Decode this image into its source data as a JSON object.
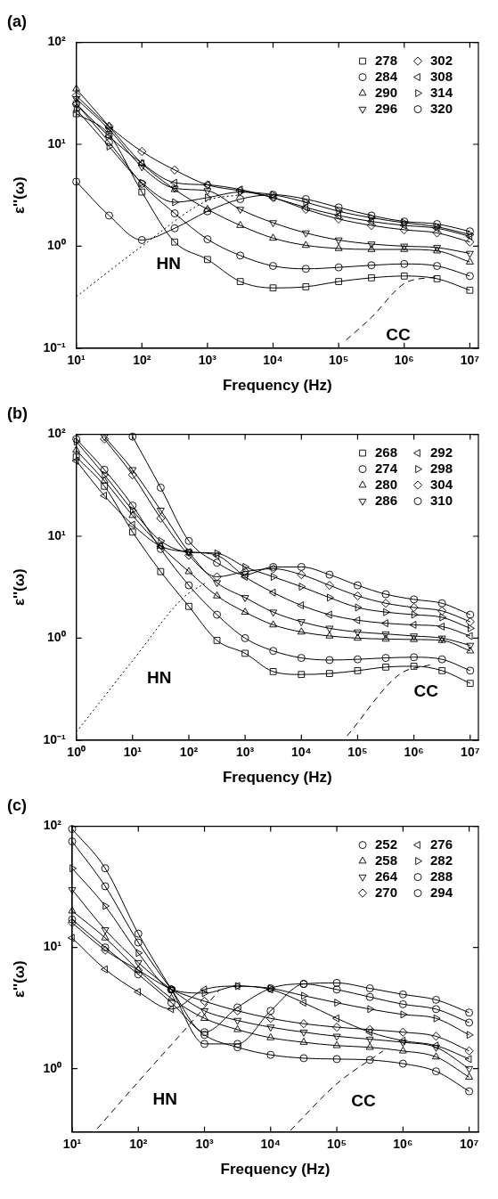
{
  "chart_data": [
    {
      "type": "line",
      "title": "(a)",
      "xlabel": "Frequency (Hz)",
      "ylabel": "ε''(ω)",
      "log": "xy",
      "grid": false,
      "legend": "top right",
      "xlim": [
        10,
        13500000
      ],
      "ylim": [
        0.1,
        100
      ],
      "xticks": [
        {
          "value": 10,
          "label": "10¹"
        },
        {
          "value": 100,
          "label": "10²"
        },
        {
          "value": 1000,
          "label": "10³"
        },
        {
          "value": 10000,
          "label": "10⁴"
        },
        {
          "value": 100000,
          "label": "10⁵"
        },
        {
          "value": 1000000,
          "label": "10⁶"
        },
        {
          "value": 10000000,
          "label": "10⁷"
        }
      ],
      "yticks": [
        {
          "value": 0.1,
          "label": "10⁻¹"
        },
        {
          "value": 1,
          "label": "10⁰"
        },
        {
          "value": 10,
          "label": "10¹"
        },
        {
          "value": 100,
          "label": "10²"
        }
      ],
      "x": [
        10,
        31.62,
        100,
        316.2,
        1000,
        3162,
        10000,
        31620,
        100000,
        316200,
        1000000,
        3162000,
        10000000
      ],
      "series": [
        {
          "name": "278",
          "color": "#000000",
          "marker": "square",
          "line_style": "solid",
          "values": [
            20,
            12.5,
            3.4,
            1.1,
            0.74,
            0.45,
            0.39,
            0.4,
            0.45,
            0.49,
            0.51,
            0.48,
            0.37
          ]
        },
        {
          "name": "284",
          "color": "#000000",
          "marker": "circle",
          "line_style": "solid",
          "values": [
            25,
            10.5,
            4.1,
            2.1,
            1.17,
            0.81,
            0.64,
            0.6,
            0.62,
            0.65,
            0.67,
            0.64,
            0.51
          ]
        },
        {
          "name": "290",
          "color": "#000000",
          "marker": "triangle",
          "line_style": "solid",
          "values": [
            35,
            15,
            6.5,
            3.6,
            2.3,
            1.6,
            1.2,
            1.02,
            0.95,
            0.93,
            0.93,
            0.9,
            0.7
          ]
        },
        {
          "name": "296",
          "color": "#000000",
          "marker": "triangle-down",
          "line_style": "solid",
          "values": [
            28,
            14,
            6,
            3.7,
            3.5,
            2.3,
            1.7,
            1.35,
            1.15,
            1.05,
            1,
            0.97,
            0.85
          ]
        },
        {
          "name": "302",
          "color": "#000000",
          "marker": "diamond",
          "line_style": "solid",
          "values": [
            30,
            15,
            8.5,
            5.6,
            4,
            3.5,
            3,
            2.3,
            1.85,
            1.6,
            1.45,
            1.35,
            1.1
          ]
        },
        {
          "name": "308",
          "color": "#000000",
          "marker": "triangle-left",
          "line_style": "solid",
          "values": [
            25,
            12,
            6.5,
            4.2,
            4,
            3.6,
            3,
            2.4,
            2,
            1.75,
            1.6,
            1.5,
            1.25
          ]
        },
        {
          "name": "314",
          "color": "#000000",
          "marker": "triangle-right",
          "line_style": "solid",
          "values": [
            22,
            9.5,
            4.2,
            2.7,
            3,
            3.4,
            3.2,
            2.7,
            2.2,
            1.9,
            1.7,
            1.55,
            1.3
          ]
        },
        {
          "name": "320",
          "color": "#000000",
          "marker": "circle",
          "line_style": "solid",
          "values": [
            4.3,
            2,
            1.15,
            1.5,
            2.2,
            2.9,
            3.2,
            2.9,
            2.4,
            2,
            1.75,
            1.65,
            1.4
          ]
        },
        {
          "color": "#000000",
          "marker": "none",
          "line_style": "dotted",
          "x": [
            10,
            100,
            1000,
            3162
          ],
          "values": [
            0.32,
            1,
            2.8,
            3.2
          ]
        },
        {
          "color": "#000000",
          "marker": "none",
          "line_style": "dashed",
          "x": [
            130000,
            316200,
            1000000,
            3000000
          ],
          "values": [
            0.12,
            0.2,
            0.43,
            0.5
          ]
        }
      ],
      "annotations": [
        "HN",
        "CC"
      ]
    },
    {
      "type": "line",
      "title": "(b)",
      "xlabel": "Frequency (Hz)",
      "ylabel": "ε''(ω)",
      "log": "xy",
      "grid": false,
      "legend": "top right",
      "xlim": [
        1,
        14000000
      ],
      "ylim": [
        0.1,
        100
      ],
      "xticks": [
        {
          "value": 1,
          "label": "10⁰"
        },
        {
          "value": 10,
          "label": "10¹"
        },
        {
          "value": 100,
          "label": "10²"
        },
        {
          "value": 1000,
          "label": "10³"
        },
        {
          "value": 10000,
          "label": "10⁴"
        },
        {
          "value": 100000,
          "label": "10⁵"
        },
        {
          "value": 1000000,
          "label": "10⁶"
        },
        {
          "value": 10000000,
          "label": "10⁷"
        }
      ],
      "yticks": [
        {
          "value": 0.1,
          "label": "10⁻¹"
        },
        {
          "value": 1,
          "label": "10⁰"
        },
        {
          "value": 10,
          "label": "10¹"
        },
        {
          "value": 100,
          "label": "10²"
        }
      ],
      "x": [
        1,
        3.162,
        10,
        31.62,
        100,
        316.2,
        1000,
        3162,
        10000,
        31620,
        100000,
        316200,
        1000000,
        3162000,
        10000000
      ],
      "series": [
        {
          "name": "268",
          "color": "#000000",
          "marker": "square",
          "line_style": "solid",
          "values": [
            60,
            31,
            11,
            4.5,
            2.05,
            0.95,
            0.71,
            0.47,
            0.44,
            0.45,
            0.48,
            0.52,
            0.53,
            0.48,
            0.36
          ]
        },
        {
          "name": "274",
          "color": "#000000",
          "marker": "circle",
          "line_style": "solid",
          "values": [
            90,
            45,
            20,
            7.5,
            3.3,
            1.7,
            1,
            0.75,
            0.64,
            0.61,
            0.62,
            0.64,
            0.65,
            0.62,
            0.48
          ]
        },
        {
          "name": "280",
          "color": "#000000",
          "marker": "triangle",
          "line_style": "solid",
          "values": [
            70,
            35,
            16,
            8,
            4.5,
            2.6,
            1.8,
            1.35,
            1.15,
            1.05,
            1,
            0.98,
            0.97,
            0.95,
            0.75
          ]
        },
        {
          "name": "286",
          "color": "#000000",
          "marker": "triangle-down",
          "line_style": "solid",
          "values": [
            null,
            95,
            45,
            18,
            7,
            3.5,
            2.5,
            1.8,
            1.45,
            1.25,
            1.15,
            1.1,
            1.05,
            1,
            0.85
          ]
        },
        {
          "name": "292",
          "color": "#000000",
          "marker": "triangle-left",
          "line_style": "solid",
          "values": [
            55,
            25,
            13,
            8,
            7,
            6.5,
            4,
            2.8,
            2.1,
            1.7,
            1.5,
            1.4,
            1.35,
            1.3,
            1.05
          ]
        },
        {
          "name": "298",
          "color": "#000000",
          "marker": "triangle-right",
          "line_style": "solid",
          "values": [
            85,
            40,
            18,
            9,
            7,
            6.8,
            5,
            4,
            3.2,
            2.5,
            2,
            1.8,
            1.7,
            1.6,
            1.25
          ]
        },
        {
          "name": "304",
          "color": "#000000",
          "marker": "diamond",
          "line_style": "solid",
          "values": [
            null,
            90,
            40,
            15,
            6.5,
            4,
            4.5,
            4.8,
            4.2,
            3.3,
            2.6,
            2.2,
            2,
            1.85,
            1.45
          ]
        },
        {
          "name": "310",
          "color": "#000000",
          "marker": "circle",
          "line_style": "solid",
          "values": [
            null,
            null,
            95,
            30,
            9,
            5.5,
            4.2,
            5,
            5,
            4.2,
            3.3,
            2.7,
            2.4,
            2.2,
            1.7
          ]
        },
        {
          "color": "#000000",
          "marker": "none",
          "line_style": "dotted",
          "x": [
            1,
            10,
            80,
            200
          ],
          "values": [
            0.12,
            0.6,
            2.5,
            3.5
          ]
        },
        {
          "color": "#000000",
          "marker": "none",
          "line_style": "dashed",
          "x": [
            65000,
            550000,
            2000000
          ],
          "values": [
            0.11,
            0.44,
            0.55
          ]
        }
      ],
      "annotations": [
        "HN",
        "CC"
      ]
    },
    {
      "type": "line",
      "title": "(c)",
      "xlabel": "Frequency (Hz)",
      "ylabel": "ε''(ω)",
      "log": "xy",
      "grid": false,
      "legend": "top right",
      "xlim": [
        10,
        13800000
      ],
      "ylim": [
        0.3,
        100
      ],
      "xticks": [
        {
          "value": 10,
          "label": "10¹"
        },
        {
          "value": 100,
          "label": "10²"
        },
        {
          "value": 1000,
          "label": "10³"
        },
        {
          "value": 10000,
          "label": "10⁴"
        },
        {
          "value": 100000,
          "label": "10⁵"
        },
        {
          "value": 1000000,
          "label": "10⁶"
        },
        {
          "value": 10000000,
          "label": "10⁷"
        }
      ],
      "yticks": [
        {
          "value": 1,
          "label": "10⁰"
        },
        {
          "value": 10,
          "label": "10¹"
        },
        {
          "value": 100,
          "label": "10²"
        }
      ],
      "x": [
        10,
        31.62,
        100,
        316.2,
        1000,
        3162,
        10000,
        31620,
        100000,
        316200,
        1000000,
        3162000,
        10000000
      ],
      "series": [
        {
          "name": "252",
          "color": "#000000",
          "marker": "circle",
          "line_style": "solid",
          "values": [
            17,
            10,
            6,
            3.5,
            1.9,
            1.5,
            1.3,
            1.22,
            1.2,
            1.18,
            1.1,
            0.95,
            0.65
          ]
        },
        {
          "name": "258",
          "color": "#000000",
          "marker": "triangle",
          "line_style": "solid",
          "values": [
            20,
            12,
            6.5,
            3.8,
            2.6,
            2.1,
            1.8,
            1.65,
            1.55,
            1.5,
            1.4,
            1.25,
            0.85
          ]
        },
        {
          "name": "264",
          "color": "#000000",
          "marker": "triangle-down",
          "line_style": "solid",
          "values": [
            30,
            14,
            7.5,
            4.5,
            3,
            2.5,
            2.2,
            2,
            1.85,
            1.75,
            1.65,
            1.5,
            1
          ]
        },
        {
          "name": "270",
          "color": "#000000",
          "marker": "diamond",
          "line_style": "solid",
          "values": [
            16,
            9.5,
            6.5,
            4.5,
            3.6,
            3,
            2.6,
            2.35,
            2.2,
            2.1,
            2,
            1.85,
            1.4
          ]
        },
        {
          "name": "276",
          "color": "#000000",
          "marker": "triangle-left",
          "line_style": "solid",
          "values": [
            12,
            6.6,
            4.3,
            3.1,
            4.5,
            4.8,
            4.5,
            3.5,
            2.6,
            2,
            1.7,
            1.55,
            1.2
          ]
        },
        {
          "name": "282",
          "color": "#000000",
          "marker": "triangle-right",
          "line_style": "solid",
          "values": [
            45,
            22,
            9,
            4.5,
            4.2,
            4.8,
            4.6,
            4,
            3.5,
            3.1,
            2.8,
            2.6,
            1.9
          ]
        },
        {
          "name": "288",
          "color": "#000000",
          "marker": "circle",
          "line_style": "solid",
          "values": [
            75,
            32,
            11,
            4.5,
            2,
            3.2,
            4.6,
            5,
            4.5,
            3.9,
            3.4,
            3.1,
            2.4
          ]
        },
        {
          "name": "294",
          "color": "#000000",
          "marker": "circle",
          "line_style": "solid",
          "values": [
            95,
            45,
            13,
            4.5,
            1.6,
            1.6,
            3,
            5,
            5.1,
            4.6,
            4.1,
            3.7,
            2.9
          ]
        },
        {
          "color": "#000000",
          "marker": "none",
          "line_style": "dashed",
          "x": [
            24,
            100,
            1000,
            1700
          ],
          "values": [
            0.32,
            0.78,
            3.2,
            4.5
          ]
        },
        {
          "color": "#000000",
          "marker": "none",
          "line_style": "dashed",
          "x": [
            20000,
            100000,
            500000
          ],
          "values": [
            0.31,
            0.75,
            1.4
          ]
        }
      ],
      "annotations": [
        "HN",
        "CC"
      ]
    }
  ]
}
